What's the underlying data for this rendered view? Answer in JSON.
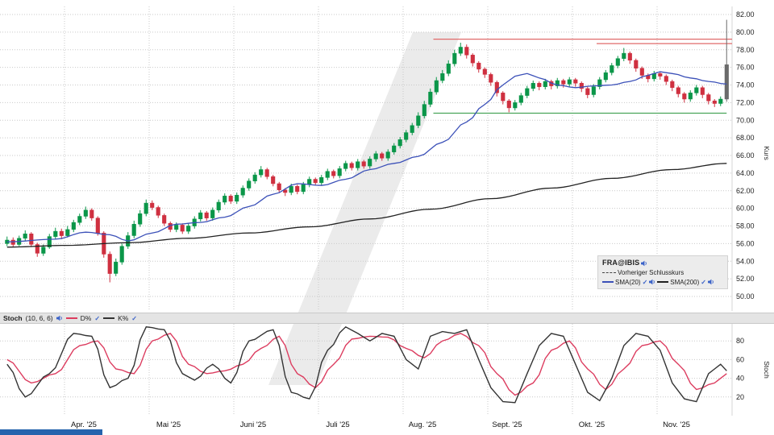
{
  "colors": {
    "up": "#0a9649",
    "down": "#cf3040",
    "neutral": "#6b6b6b",
    "sma20": "#3b50b8",
    "sma200": "#222222",
    "prev_close": "#444444",
    "resistance": "#e06a6a",
    "support": "#4aa45a",
    "grid": "#c9c9c9",
    "watermark": "#ebebeb",
    "d_line": "#dc3c5f",
    "k_line": "#333333",
    "footer_bar": "#2563ad",
    "panel_strip": "#e4e4e4",
    "legend_bg": "#ececec",
    "accent_blue": "#3a62c8"
  },
  "legend": {
    "symbol": "FRA@IBIS",
    "prev_close_label": "Vorheriger Schlusskurs",
    "sma20_label": "SMA(20)",
    "sma200_label": "SMA(200)"
  },
  "stoch_header": {
    "title": "Stoch",
    "params": "(10, 6, 6)",
    "d_label": "D%",
    "k_label": "K%"
  },
  "chart_data": {
    "type": "candlestick",
    "title": "FRA@IBIS",
    "ylabel": "Kurs",
    "ylim": [
      50,
      82
    ],
    "grid": true,
    "price_ticks": [
      "82.00",
      "80.00",
      "78.00",
      "76.00",
      "74.00",
      "72.00",
      "70.00",
      "68.00",
      "66.00",
      "64.00",
      "62.00",
      "60.00",
      "58.00",
      "56.00",
      "54.00",
      "52.00",
      "50.00"
    ],
    "x_month_ticks": [
      {
        "i": 10,
        "label": "Apr. '25"
      },
      {
        "i": 24,
        "label": "Mai '25"
      },
      {
        "i": 38,
        "label": "Juni '25"
      },
      {
        "i": 52,
        "label": "Juli '25"
      },
      {
        "i": 66,
        "label": "Aug. '25"
      },
      {
        "i": 80,
        "label": "Sept. '25"
      },
      {
        "i": 94,
        "label": "Okt. '25"
      },
      {
        "i": 108,
        "label": "Nov. '25"
      }
    ],
    "candles": [
      [
        56.0,
        56.8,
        55.7,
        56.4
      ],
      [
        56.4,
        56.7,
        55.6,
        55.9
      ],
      [
        55.9,
        56.9,
        55.7,
        56.6
      ],
      [
        56.6,
        57.5,
        56.3,
        57.1
      ],
      [
        57.1,
        57.3,
        55.6,
        55.9
      ],
      [
        55.9,
        56.1,
        54.5,
        54.9
      ],
      [
        54.9,
        55.9,
        54.6,
        55.6
      ],
      [
        55.6,
        57.1,
        55.4,
        56.8
      ],
      [
        56.8,
        57.8,
        56.5,
        57.4
      ],
      [
        57.4,
        57.7,
        56.5,
        56.9
      ],
      [
        56.9,
        58.0,
        56.7,
        57.6
      ],
      [
        57.6,
        58.7,
        57.3,
        58.4
      ],
      [
        58.4,
        59.4,
        58.1,
        59.1
      ],
      [
        59.1,
        60.2,
        58.8,
        59.8
      ],
      [
        59.8,
        60.0,
        58.6,
        58.9
      ],
      [
        58.9,
        59.1,
        56.9,
        57.2
      ],
      [
        57.2,
        57.4,
        54.4,
        54.8
      ],
      [
        54.8,
        55.1,
        51.6,
        52.6
      ],
      [
        52.6,
        54.3,
        52.3,
        53.9
      ],
      [
        53.9,
        56.0,
        53.6,
        55.7
      ],
      [
        55.7,
        57.3,
        55.4,
        56.9
      ],
      [
        56.9,
        58.6,
        56.6,
        58.2
      ],
      [
        58.2,
        59.8,
        57.9,
        59.4
      ],
      [
        59.4,
        61.0,
        59.1,
        60.6
      ],
      [
        60.6,
        60.9,
        59.8,
        60.1
      ],
      [
        60.1,
        60.3,
        58.9,
        59.2
      ],
      [
        59.2,
        59.4,
        58.0,
        58.3
      ],
      [
        58.3,
        58.5,
        57.3,
        57.6
      ],
      [
        57.6,
        58.4,
        57.3,
        58.1
      ],
      [
        58.1,
        58.3,
        57.1,
        57.4
      ],
      [
        57.4,
        58.3,
        57.1,
        58.0
      ],
      [
        58.0,
        59.1,
        57.7,
        58.8
      ],
      [
        58.8,
        59.8,
        58.5,
        59.5
      ],
      [
        59.5,
        59.7,
        58.6,
        58.9
      ],
      [
        58.9,
        60.1,
        58.6,
        59.8
      ],
      [
        59.8,
        61.0,
        59.5,
        60.7
      ],
      [
        60.7,
        61.7,
        60.4,
        61.4
      ],
      [
        61.4,
        61.6,
        60.5,
        60.8
      ],
      [
        60.8,
        61.8,
        60.5,
        61.5
      ],
      [
        61.5,
        62.6,
        61.2,
        62.3
      ],
      [
        62.3,
        63.4,
        62.0,
        63.1
      ],
      [
        63.1,
        64.1,
        62.8,
        63.8
      ],
      [
        63.8,
        64.8,
        63.5,
        64.4
      ],
      [
        64.4,
        64.6,
        63.3,
        63.6
      ],
      [
        63.6,
        63.8,
        62.5,
        62.8
      ],
      [
        62.8,
        63.0,
        61.8,
        62.1
      ],
      [
        62.1,
        62.3,
        61.4,
        61.8
      ],
      [
        61.8,
        62.8,
        61.5,
        62.5
      ],
      [
        62.5,
        62.7,
        61.6,
        61.9
      ],
      [
        61.9,
        63.0,
        61.6,
        62.7
      ],
      [
        62.7,
        63.6,
        62.4,
        63.3
      ],
      [
        63.3,
        63.5,
        62.6,
        62.9
      ],
      [
        62.9,
        63.8,
        62.6,
        63.5
      ],
      [
        63.5,
        64.5,
        63.2,
        64.2
      ],
      [
        64.2,
        64.4,
        63.4,
        63.7
      ],
      [
        63.7,
        64.8,
        63.4,
        64.5
      ],
      [
        64.5,
        65.4,
        64.2,
        65.1
      ],
      [
        65.1,
        65.3,
        64.3,
        64.6
      ],
      [
        64.6,
        65.6,
        64.3,
        65.3
      ],
      [
        65.3,
        65.5,
        64.5,
        64.8
      ],
      [
        64.8,
        65.9,
        64.5,
        65.6
      ],
      [
        65.6,
        66.5,
        65.3,
        66.2
      ],
      [
        66.2,
        66.4,
        65.4,
        65.7
      ],
      [
        65.7,
        66.7,
        65.4,
        66.4
      ],
      [
        66.4,
        67.4,
        66.1,
        67.1
      ],
      [
        67.1,
        68.1,
        66.8,
        67.8
      ],
      [
        67.8,
        68.9,
        67.5,
        68.6
      ],
      [
        68.6,
        69.7,
        68.3,
        69.4
      ],
      [
        69.4,
        70.9,
        69.1,
        70.5
      ],
      [
        70.5,
        72.2,
        70.2,
        71.8
      ],
      [
        71.8,
        73.6,
        71.5,
        73.2
      ],
      [
        73.2,
        74.9,
        72.9,
        74.5
      ],
      [
        74.5,
        75.7,
        74.2,
        75.3
      ],
      [
        75.3,
        76.8,
        75.0,
        76.4
      ],
      [
        76.4,
        78.0,
        76.1,
        77.6
      ],
      [
        77.6,
        78.8,
        77.3,
        78.3
      ],
      [
        78.3,
        78.6,
        77.0,
        77.4
      ],
      [
        77.4,
        77.6,
        76.1,
        76.5
      ],
      [
        76.5,
        76.7,
        75.4,
        75.8
      ],
      [
        75.8,
        76.0,
        74.8,
        75.2
      ],
      [
        75.2,
        75.4,
        73.9,
        74.3
      ],
      [
        74.3,
        74.5,
        72.7,
        73.1
      ],
      [
        73.1,
        73.3,
        71.8,
        72.2
      ],
      [
        72.2,
        72.4,
        70.9,
        71.4
      ],
      [
        71.4,
        72.3,
        71.1,
        72.0
      ],
      [
        72.0,
        73.1,
        71.7,
        72.8
      ],
      [
        72.8,
        73.9,
        72.5,
        73.6
      ],
      [
        73.6,
        74.5,
        73.3,
        74.2
      ],
      [
        74.2,
        74.4,
        73.4,
        73.8
      ],
      [
        73.8,
        74.7,
        73.5,
        74.4
      ],
      [
        74.4,
        74.6,
        73.5,
        73.9
      ],
      [
        73.9,
        74.8,
        73.6,
        74.5
      ],
      [
        74.5,
        74.7,
        73.7,
        74.1
      ],
      [
        74.1,
        74.9,
        73.8,
        74.6
      ],
      [
        74.6,
        74.8,
        73.8,
        74.2
      ],
      [
        74.2,
        74.4,
        73.2,
        73.6
      ],
      [
        73.6,
        73.8,
        72.5,
        72.9
      ],
      [
        72.9,
        74.1,
        72.6,
        73.8
      ],
      [
        73.8,
        74.9,
        73.5,
        74.6
      ],
      [
        74.6,
        75.7,
        74.3,
        75.4
      ],
      [
        75.4,
        76.5,
        75.1,
        76.2
      ],
      [
        76.2,
        77.3,
        75.9,
        77.0
      ],
      [
        77.0,
        78.2,
        76.7,
        77.6
      ],
      [
        77.6,
        77.8,
        76.4,
        76.8
      ],
      [
        76.8,
        77.0,
        75.5,
        75.9
      ],
      [
        75.9,
        76.1,
        74.7,
        75.1
      ],
      [
        75.1,
        75.3,
        74.3,
        74.7
      ],
      [
        74.7,
        75.6,
        74.4,
        75.3
      ],
      [
        75.3,
        75.5,
        74.6,
        75.0
      ],
      [
        75.0,
        75.2,
        74.0,
        74.4
      ],
      [
        74.4,
        74.6,
        73.3,
        73.7
      ],
      [
        73.7,
        73.9,
        72.6,
        73.0
      ],
      [
        73.0,
        73.2,
        72.0,
        72.4
      ],
      [
        72.4,
        73.4,
        72.1,
        73.1
      ],
      [
        73.1,
        74.0,
        72.8,
        73.7
      ],
      [
        73.7,
        73.9,
        72.5,
        72.9
      ],
      [
        72.9,
        73.1,
        71.8,
        72.2
      ],
      [
        72.2,
        72.4,
        71.5,
        71.9
      ],
      [
        71.9,
        72.7,
        71.6,
        72.4
      ],
      [
        72.4,
        81.4,
        72.1,
        76.3,
        "n"
      ]
    ],
    "overlays": {
      "sma20_anchors": [
        [
          0,
          56.2
        ],
        [
          8,
          56.5
        ],
        [
          13,
          57.3
        ],
        [
          17,
          57.0
        ],
        [
          20,
          56.3
        ],
        [
          24,
          57.2
        ],
        [
          28,
          58.2
        ],
        [
          32,
          58.4
        ],
        [
          36,
          59.0
        ],
        [
          40,
          60.2
        ],
        [
          44,
          61.6
        ],
        [
          48,
          62.8
        ],
        [
          52,
          62.6
        ],
        [
          56,
          63.3
        ],
        [
          60,
          64.4
        ],
        [
          64,
          65.1
        ],
        [
          68,
          65.9
        ],
        [
          72,
          67.5
        ],
        [
          76,
          69.8
        ],
        [
          79,
          71.8
        ],
        [
          82,
          74.0
        ],
        [
          84,
          75.0
        ],
        [
          86,
          75.3
        ],
        [
          88,
          74.8
        ],
        [
          91,
          74.0
        ],
        [
          94,
          73.7
        ],
        [
          97,
          73.9
        ],
        [
          100,
          74.0
        ],
        [
          103,
          74.4
        ],
        [
          106,
          75.1
        ],
        [
          108,
          75.5
        ],
        [
          110,
          75.3
        ],
        [
          113,
          74.8
        ],
        [
          116,
          74.4
        ],
        [
          119,
          74.1
        ]
      ],
      "sma200_anchors": [
        [
          0,
          55.6
        ],
        [
          10,
          55.8
        ],
        [
          20,
          56.1
        ],
        [
          30,
          56.6
        ],
        [
          40,
          57.2
        ],
        [
          50,
          57.9
        ],
        [
          60,
          58.8
        ],
        [
          70,
          59.9
        ],
        [
          80,
          61.1
        ],
        [
          90,
          62.3
        ],
        [
          100,
          63.4
        ],
        [
          110,
          64.4
        ],
        [
          119,
          65.1
        ]
      ],
      "hlines": [
        {
          "price": 79.2,
          "from": 71,
          "to": 120.5,
          "color_key": "resistance"
        },
        {
          "price": 78.7,
          "from": 98,
          "to": 120.5,
          "color_key": "resistance"
        },
        {
          "price": 70.8,
          "from": 71,
          "to": 119.5,
          "color_key": "support"
        }
      ]
    },
    "stochastic": {
      "type": "line",
      "label": "Stoch",
      "params": "(10, 6, 6)",
      "ylabel": "Stoch",
      "ylim": [
        0,
        100
      ],
      "ticks": [
        "80",
        "60",
        "40",
        "20"
      ],
      "series": [
        {
          "name": "D%",
          "color": "#dc3c5f",
          "anchors": [
            [
              0,
              60
            ],
            [
              4,
              35
            ],
            [
              8,
              45
            ],
            [
              12,
              75
            ],
            [
              15,
              80
            ],
            [
              18,
              50
            ],
            [
              21,
              45
            ],
            [
              24,
              80
            ],
            [
              27,
              88
            ],
            [
              30,
              55
            ],
            [
              33,
              45
            ],
            [
              36,
              48
            ],
            [
              39,
              55
            ],
            [
              42,
              72
            ],
            [
              45,
              85
            ],
            [
              48,
              45
            ],
            [
              51,
              30
            ],
            [
              54,
              55
            ],
            [
              57,
              82
            ],
            [
              60,
              85
            ],
            [
              63,
              84
            ],
            [
              66,
              72
            ],
            [
              69,
              62
            ],
            [
              72,
              80
            ],
            [
              75,
              88
            ],
            [
              78,
              75
            ],
            [
              81,
              45
            ],
            [
              84,
              22
            ],
            [
              87,
              35
            ],
            [
              90,
              70
            ],
            [
              93,
              80
            ],
            [
              96,
              50
            ],
            [
              99,
              28
            ],
            [
              102,
              50
            ],
            [
              105,
              75
            ],
            [
              108,
              80
            ],
            [
              111,
              55
            ],
            [
              114,
              28
            ],
            [
              117,
              35
            ],
            [
              119,
              45
            ]
          ]
        },
        {
          "name": "K%",
          "color": "#333333",
          "anchors": [
            [
              0,
              55
            ],
            [
              3,
              20
            ],
            [
              7,
              45
            ],
            [
              11,
              88
            ],
            [
              14,
              85
            ],
            [
              17,
              30
            ],
            [
              20,
              40
            ],
            [
              23,
              95
            ],
            [
              26,
              92
            ],
            [
              29,
              45
            ],
            [
              31,
              38
            ],
            [
              34,
              55
            ],
            [
              37,
              35
            ],
            [
              40,
              80
            ],
            [
              44,
              92
            ],
            [
              47,
              25
            ],
            [
              50,
              18
            ],
            [
              53,
              70
            ],
            [
              56,
              95
            ],
            [
              58,
              88
            ],
            [
              60,
              80
            ],
            [
              62,
              88
            ],
            [
              64,
              85
            ],
            [
              66,
              60
            ],
            [
              68,
              50
            ],
            [
              70,
              85
            ],
            [
              72,
              90
            ],
            [
              74,
              88
            ],
            [
              76,
              92
            ],
            [
              78,
              60
            ],
            [
              80,
              30
            ],
            [
              82,
              15
            ],
            [
              84,
              14
            ],
            [
              86,
              45
            ],
            [
              88,
              75
            ],
            [
              90,
              88
            ],
            [
              92,
              85
            ],
            [
              94,
              55
            ],
            [
              96,
              25
            ],
            [
              98,
              16
            ],
            [
              100,
              40
            ],
            [
              102,
              75
            ],
            [
              104,
              88
            ],
            [
              106,
              85
            ],
            [
              108,
              70
            ],
            [
              110,
              35
            ],
            [
              112,
              18
            ],
            [
              114,
              15
            ],
            [
              116,
              45
            ],
            [
              118,
              55
            ],
            [
              119,
              48
            ]
          ]
        }
      ]
    }
  }
}
